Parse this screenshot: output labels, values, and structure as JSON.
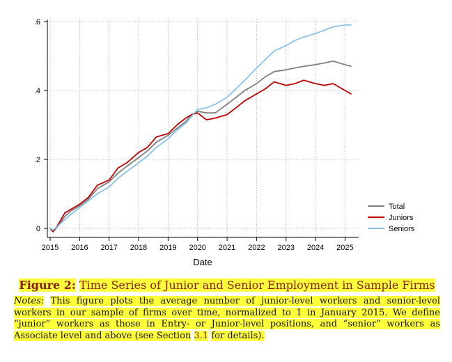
{
  "chart_data": {
    "type": "line",
    "xlabel": "Date",
    "ylabel": "",
    "xlim": [
      2015,
      2025.25
    ],
    "ylim": [
      0,
      0.6
    ],
    "x_ticks": [
      2015,
      2016,
      2017,
      2018,
      2019,
      2020,
      2021,
      2022,
      2023,
      2024,
      2025
    ],
    "x_tick_labels": [
      "2015",
      "2016",
      "2017",
      "2018",
      "2019",
      "2020",
      "2021",
      "2022",
      "2023",
      "2024",
      "2025"
    ],
    "y_ticks": [
      0,
      0.2,
      0.4,
      0.6
    ],
    "y_tick_labels": [
      "0",
      ".2",
      ".4",
      ".6"
    ],
    "grid": true,
    "legend_position": "right",
    "series": [
      {
        "name": "Total",
        "color": "#7f7f7f",
        "x": [
          2015,
          2015.1,
          2015.3,
          2015.5,
          2015.7,
          2016,
          2016.3,
          2016.6,
          2017,
          2017.3,
          2017.6,
          2018,
          2018.3,
          2018.6,
          2019,
          2019.3,
          2019.6,
          2019.8,
          2020,
          2020.3,
          2020.6,
          2021,
          2021.3,
          2021.6,
          2022,
          2022.3,
          2022.6,
          2023,
          2023.3,
          2023.6,
          2024,
          2024.3,
          2024.6,
          2025,
          2025.2
        ],
        "y": [
          0,
          -0.01,
          0.01,
          0.035,
          0.05,
          0.065,
          0.085,
          0.115,
          0.135,
          0.16,
          0.18,
          0.205,
          0.225,
          0.25,
          0.27,
          0.29,
          0.31,
          0.33,
          0.34,
          0.335,
          0.335,
          0.36,
          0.38,
          0.4,
          0.42,
          0.44,
          0.455,
          0.46,
          0.465,
          0.47,
          0.475,
          0.48,
          0.485,
          0.475,
          0.47
        ]
      },
      {
        "name": "Juniors",
        "color": "#c00000",
        "x": [
          2015,
          2015.1,
          2015.3,
          2015.5,
          2015.7,
          2016,
          2016.3,
          2016.6,
          2017,
          2017.3,
          2017.6,
          2018,
          2018.3,
          2018.6,
          2019,
          2019.3,
          2019.6,
          2019.8,
          2020,
          2020.3,
          2020.6,
          2021,
          2021.3,
          2021.6,
          2022,
          2022.3,
          2022.6,
          2023,
          2023.3,
          2023.6,
          2024,
          2024.3,
          2024.6,
          2025,
          2025.2
        ],
        "y": [
          0,
          -0.01,
          0.015,
          0.045,
          0.055,
          0.07,
          0.09,
          0.125,
          0.14,
          0.175,
          0.19,
          0.22,
          0.235,
          0.265,
          0.275,
          0.3,
          0.32,
          0.33,
          0.335,
          0.315,
          0.32,
          0.33,
          0.35,
          0.37,
          0.39,
          0.405,
          0.425,
          0.415,
          0.42,
          0.43,
          0.42,
          0.415,
          0.42,
          0.4,
          0.39
        ]
      },
      {
        "name": "Seniors",
        "color": "#87c3e8",
        "x": [
          2015,
          2015.1,
          2015.3,
          2015.5,
          2015.7,
          2016,
          2016.3,
          2016.6,
          2017,
          2017.3,
          2017.6,
          2018,
          2018.3,
          2018.6,
          2019,
          2019.3,
          2019.6,
          2019.8,
          2020,
          2020.3,
          2020.6,
          2021,
          2021.3,
          2021.6,
          2022,
          2022.3,
          2022.6,
          2023,
          2023.3,
          2023.6,
          2024,
          2024.3,
          2024.6,
          2025,
          2025.2
        ],
        "y": [
          0,
          -0.005,
          0.01,
          0.025,
          0.04,
          0.06,
          0.08,
          0.1,
          0.12,
          0.145,
          0.165,
          0.19,
          0.21,
          0.235,
          0.26,
          0.285,
          0.305,
          0.325,
          0.345,
          0.35,
          0.36,
          0.38,
          0.405,
          0.43,
          0.465,
          0.49,
          0.515,
          0.53,
          0.545,
          0.555,
          0.565,
          0.575,
          0.585,
          0.59,
          0.59
        ]
      }
    ]
  },
  "caption": {
    "label": "Figure 2:",
    "title": "Time Series of Junior and Senior Employment in Sample Firms",
    "notes_label": "Notes:",
    "notes_text": "This figure plots the average number of junior-level workers and senior-level workers in our sample of firms over time, normalized to 1 in January 2015. We define “junior” workers as those in Entry- or Junior-level positions, and “senior” workers as Associate level and above (see Section",
    "section_ref": "3.1",
    "notes_end": "for details)."
  }
}
